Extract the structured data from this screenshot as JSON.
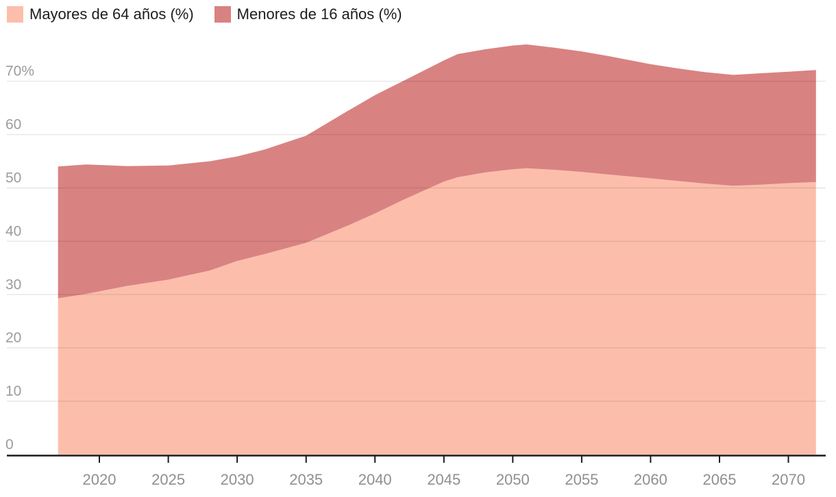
{
  "chart_data": {
    "type": "area",
    "stacked": true,
    "title": "",
    "xlabel": "",
    "ylabel": "%",
    "x": [
      2017,
      2019,
      2022,
      2025,
      2028,
      2030,
      2032,
      2035,
      2038,
      2040,
      2042,
      2045,
      2046,
      2048,
      2050,
      2051,
      2053,
      2055,
      2057,
      2060,
      2062,
      2064,
      2066,
      2068,
      2070,
      2072
    ],
    "series": [
      {
        "name": "Mayores de 64 años (%)",
        "color": "#fcbeab",
        "values": [
          29.3,
          30.1,
          31.6,
          32.8,
          34.5,
          36.3,
          37.6,
          39.7,
          42.9,
          45.2,
          47.7,
          51.2,
          52.0,
          52.9,
          53.5,
          53.7,
          53.4,
          53.0,
          52.5,
          51.8,
          51.3,
          50.8,
          50.4,
          50.6,
          50.9,
          51.1
        ]
      },
      {
        "name": "Menores de 16 años (%)",
        "color": "#d98282",
        "values": [
          24.7,
          24.3,
          22.5,
          21.4,
          20.5,
          19.6,
          19.6,
          20.1,
          21.5,
          22.2,
          22.3,
          22.7,
          23.1,
          23.1,
          23.2,
          23.2,
          22.9,
          22.6,
          22.2,
          21.4,
          21.1,
          20.9,
          20.8,
          20.9,
          20.9,
          21.0
        ]
      }
    ],
    "xlim": [
      2017,
      2072
    ],
    "ylim": [
      0,
      74
    ],
    "xticks": [
      2020,
      2025,
      2030,
      2035,
      2040,
      2045,
      2050,
      2055,
      2060,
      2065,
      2070
    ],
    "yticks": [
      0,
      10,
      20,
      30,
      40,
      50,
      60,
      70
    ],
    "ytick_labels": [
      "0",
      "10",
      "20",
      "30",
      "40",
      "50",
      "60",
      "70%"
    ],
    "grid": true,
    "legend_position": "top-left",
    "colors": {
      "axis": "#1a1a1a",
      "grid": "rgba(26,26,26,0.11)",
      "xtick_label": "#8f8f8f",
      "ytick_label": "#9c9c9c"
    }
  }
}
